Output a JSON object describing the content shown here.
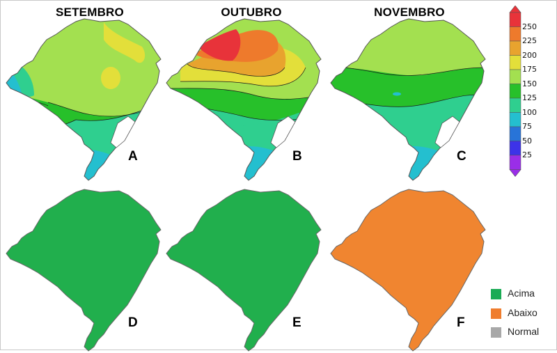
{
  "months": [
    "SETEMBRO",
    "OUTUBRO",
    "NOVEMBRO"
  ],
  "panels": [
    "A",
    "B",
    "C",
    "D",
    "E",
    "F"
  ],
  "colorbar": {
    "ticks": [
      "250",
      "225",
      "200",
      "175",
      "150",
      "125",
      "100",
      "75",
      "50",
      "25"
    ],
    "colors": [
      "#e8333a",
      "#ee7a2c",
      "#e8a32e",
      "#e3df3a",
      "#a3e050",
      "#27c02a",
      "#2fcf8f",
      "#24bfcf",
      "#2874d8",
      "#3d33e8",
      "#9a2ee8"
    ]
  },
  "legend": [
    {
      "label": "Acima",
      "color": "#1bab55",
      "icon": "green-square"
    },
    {
      "label": "Abaixo",
      "color": "#ef7d2e",
      "icon": "orange-square"
    },
    {
      "label": "Normal",
      "color": "#a8a8a8",
      "icon": "gray-square"
    }
  ],
  "anomaly_fills": {
    "D": "#21af4d",
    "E": "#21af4d",
    "F": "#f08530"
  }
}
